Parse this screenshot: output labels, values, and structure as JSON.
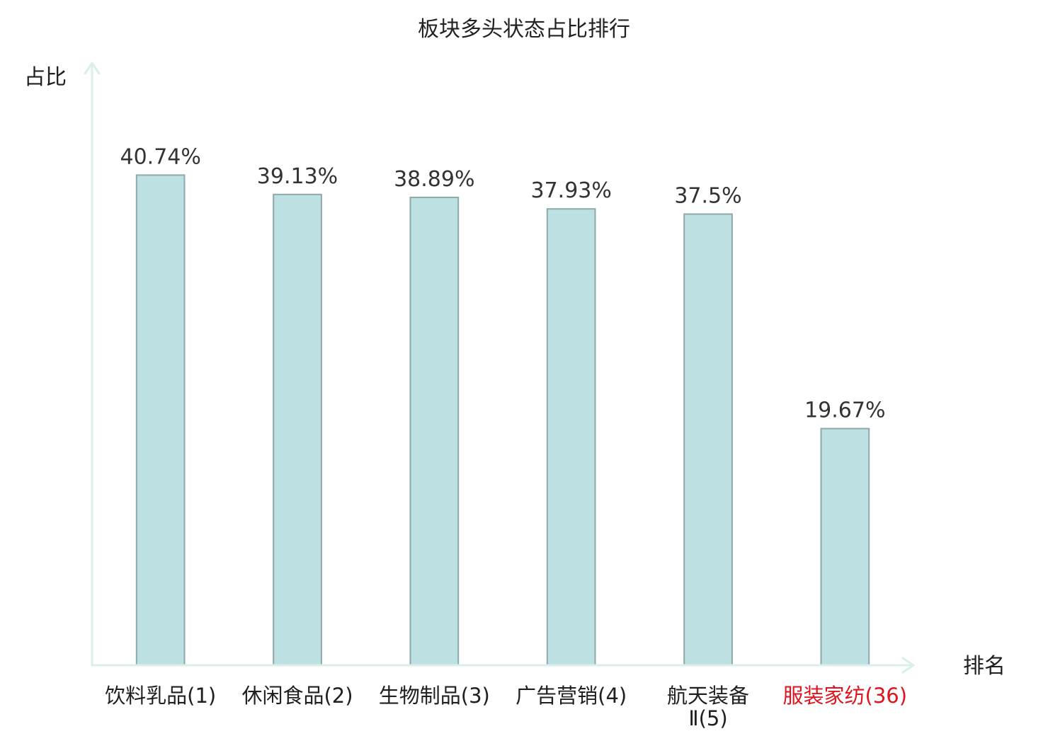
{
  "chart_data": {
    "type": "bar",
    "title": "板块多头状态占比排行",
    "xlabel": "排名",
    "ylabel": "占比",
    "categories": [
      "饮料乳品(1)",
      "休闲食品(2)",
      "生物制品(3)",
      "广告营销(4)",
      "航天装备Ⅱ(5)",
      "服装家纺(36)"
    ],
    "values": [
      40.74,
      39.13,
      38.89,
      37.93,
      37.5,
      19.67
    ],
    "data_labels": [
      "40.74%",
      "39.13%",
      "38.89%",
      "37.93%",
      "37.5%",
      "19.67%"
    ],
    "ylim": [
      0,
      50
    ],
    "grid": false,
    "legend": false,
    "colors": {
      "bar_fill": "#bde0e3",
      "bar_stroke": "#8fa9aa",
      "axis": "#d9efea",
      "label_colors": [
        "#1f1f1f",
        "#1f1f1f",
        "#1f1f1f",
        "#1f1f1f",
        "#1f1f1f",
        "#e0141e"
      ]
    }
  }
}
